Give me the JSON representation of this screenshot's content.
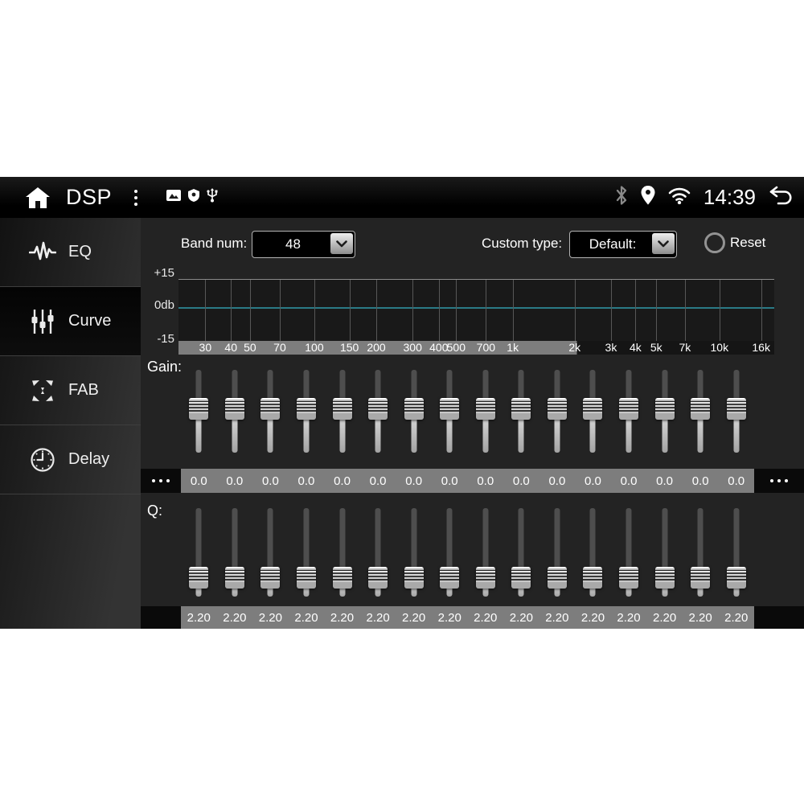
{
  "status_bar": {
    "title": "DSP",
    "time": "14:39",
    "icons": [
      "home-icon",
      "overflow-menu-icon",
      "gallery-icon",
      "shield-icon",
      "usb-icon",
      "bluetooth-icon",
      "location-icon",
      "wifi-icon",
      "back-icon"
    ]
  },
  "sidebar": {
    "items": [
      {
        "label": "EQ",
        "icon": "eq-waveform-icon",
        "selected": false
      },
      {
        "label": "Curve",
        "icon": "sliders-icon",
        "selected": true
      },
      {
        "label": "FAB",
        "icon": "fab-arrows-icon",
        "selected": false
      },
      {
        "label": "Delay",
        "icon": "clock-icon",
        "selected": false
      }
    ]
  },
  "controls": {
    "band_num_label": "Band num:",
    "band_num_value": "48",
    "custom_type_label": "Custom type:",
    "custom_type_value": "Default:",
    "reset_label": "Reset"
  },
  "graph": {
    "y_labels": [
      "+15",
      "0db",
      "-15"
    ],
    "zero_line_color": "#2a7a86",
    "freq_ticks": [
      {
        "text": "30",
        "pos": 4.5
      },
      {
        "text": "40",
        "pos": 8.8
      },
      {
        "text": "50",
        "pos": 12.0
      },
      {
        "text": "70",
        "pos": 17.0
      },
      {
        "text": "100",
        "pos": 22.8
      },
      {
        "text": "150",
        "pos": 28.7
      },
      {
        "text": "200",
        "pos": 33.2
      },
      {
        "text": "300",
        "pos": 39.3
      },
      {
        "text": "400",
        "pos": 43.7
      },
      {
        "text": "500",
        "pos": 46.6
      },
      {
        "text": "700",
        "pos": 51.6
      },
      {
        "text": "1k",
        "pos": 56.1
      },
      {
        "text": "2k",
        "pos": 66.5
      },
      {
        "text": "3k",
        "pos": 72.6
      },
      {
        "text": "4k",
        "pos": 76.7
      },
      {
        "text": "5k",
        "pos": 80.2
      },
      {
        "text": "7k",
        "pos": 85.0
      },
      {
        "text": "10k",
        "pos": 90.8
      },
      {
        "text": "16k",
        "pos": 97.8
      }
    ]
  },
  "gain": {
    "label": "Gain:",
    "values": [
      "0.0",
      "0.0",
      "0.0",
      "0.0",
      "0.0",
      "0.0",
      "0.0",
      "0.0",
      "0.0",
      "0.0",
      "0.0",
      "0.0",
      "0.0",
      "0.0",
      "0.0",
      "0.0"
    ]
  },
  "q": {
    "label": "Q:",
    "values": [
      "2.20",
      "2.20",
      "2.20",
      "2.20",
      "2.20",
      "2.20",
      "2.20",
      "2.20",
      "2.20",
      "2.20",
      "2.20",
      "2.20",
      "2.20",
      "2.20",
      "2.20",
      "2.20"
    ]
  }
}
